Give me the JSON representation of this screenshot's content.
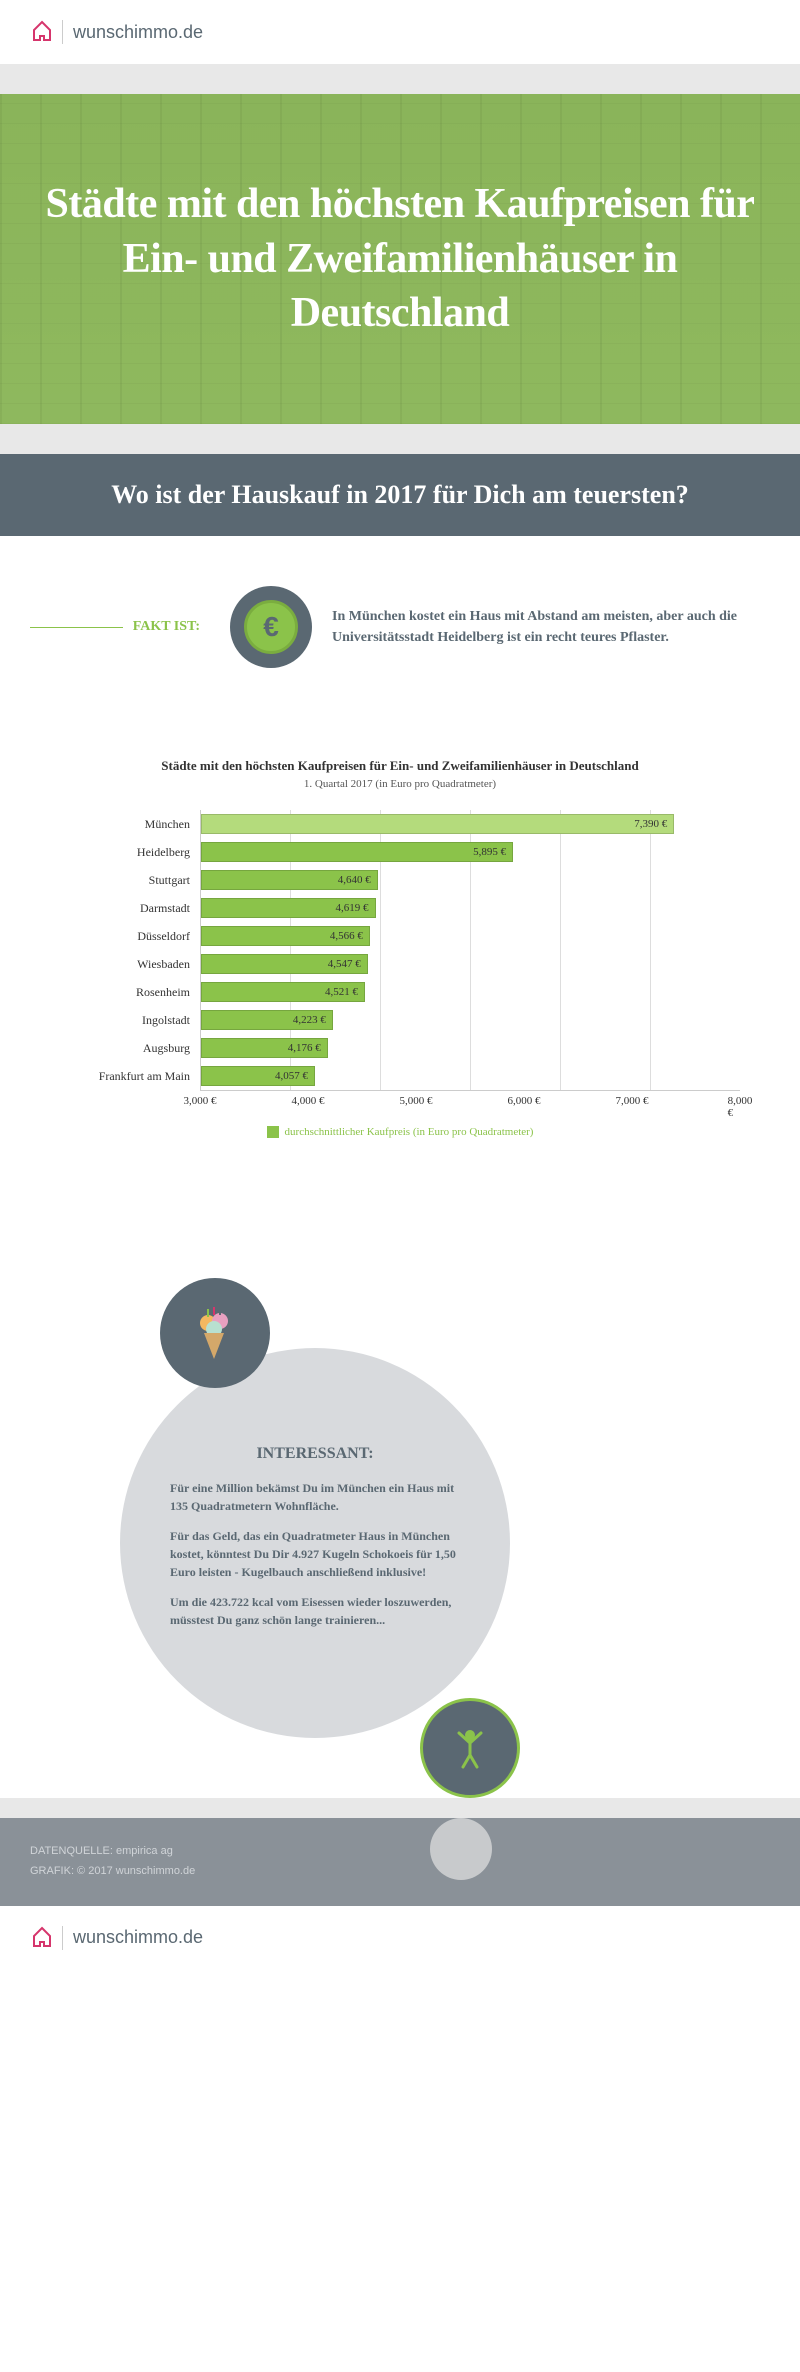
{
  "brand": "wunschimmo.de",
  "hero": {
    "title": "Städte mit den höchsten Kaufpreisen für Ein- und Zweifamilienhäuser in Deutschland"
  },
  "question": "Wo ist der Hauskauf in 2017 für Dich am teuersten?",
  "fact": {
    "label": "FAKT IST:",
    "text": "In München kostet ein Haus mit Abstand am meisten, aber auch die Universitätsstadt Heidelberg ist ein recht teures Pflaster."
  },
  "chart": {
    "title": "Städte mit den höchsten Kaufpreisen für Ein- und Zweifamilienhäuser in Deutschland",
    "subtitle": "1. Quartal 2017 (in Euro pro Quadratmeter)",
    "type": "bar-horizontal",
    "xmin": 3000,
    "xmax": 8000,
    "xtick_step": 1000,
    "xticks": [
      "3,000 €",
      "4,000 €",
      "5,000 €",
      "6,000 €",
      "7,000 €",
      "8,000 €"
    ],
    "legend": "durchschnittlicher Kaufpreis (in Euro pro Quadratmeter)",
    "highlight_color": "#b4db7c",
    "bar_color": "#8bc34a",
    "bar_border": "#7aad3f",
    "grid_color": "#dddddd",
    "data": [
      {
        "city": "München",
        "value": 7390,
        "label": "7,390 €",
        "highlight": true
      },
      {
        "city": "Heidelberg",
        "value": 5895,
        "label": "5,895 €",
        "highlight": false
      },
      {
        "city": "Stuttgart",
        "value": 4640,
        "label": "4,640 €",
        "highlight": false
      },
      {
        "city": "Darmstadt",
        "value": 4619,
        "label": "4,619 €",
        "highlight": false
      },
      {
        "city": "Düsseldorf",
        "value": 4566,
        "label": "4,566 €",
        "highlight": false
      },
      {
        "city": "Wiesbaden",
        "value": 4547,
        "label": "4,547 €",
        "highlight": false
      },
      {
        "city": "Rosenheim",
        "value": 4521,
        "label": "4,521 €",
        "highlight": false
      },
      {
        "city": "Ingolstadt",
        "value": 4223,
        "label": "4,223 €",
        "highlight": false
      },
      {
        "city": "Augsburg",
        "value": 4176,
        "label": "4,176 €",
        "highlight": false
      },
      {
        "city": "Frankfurt am Main",
        "value": 4057,
        "label": "4,057 €",
        "highlight": false
      }
    ]
  },
  "interesting": {
    "title": "INTERESSANT:",
    "p1": "Für eine Million bekämst Du im München ein Haus mit 135 Quadratmetern Wohnfläche.",
    "p2": "Für das Geld, das ein Quadratmeter Haus in München kostet, könntest Du Dir 4.927 Kugeln Schokoeis für 1,50 Euro leisten - Kugelbauch anschließend inklusive!",
    "p3": "Um die 423.722 kcal vom Eisessen wieder loszuwerden, müsstest Du ganz schön lange trainieren..."
  },
  "footer": {
    "source": "DATENQUELLE: empirica ag",
    "graphic": "GRAFIK: © 2017 wunschimmo.de"
  },
  "colors": {
    "accent": "#8bc34a",
    "dark": "#5a6872",
    "light_gray": "#d8dadd"
  }
}
